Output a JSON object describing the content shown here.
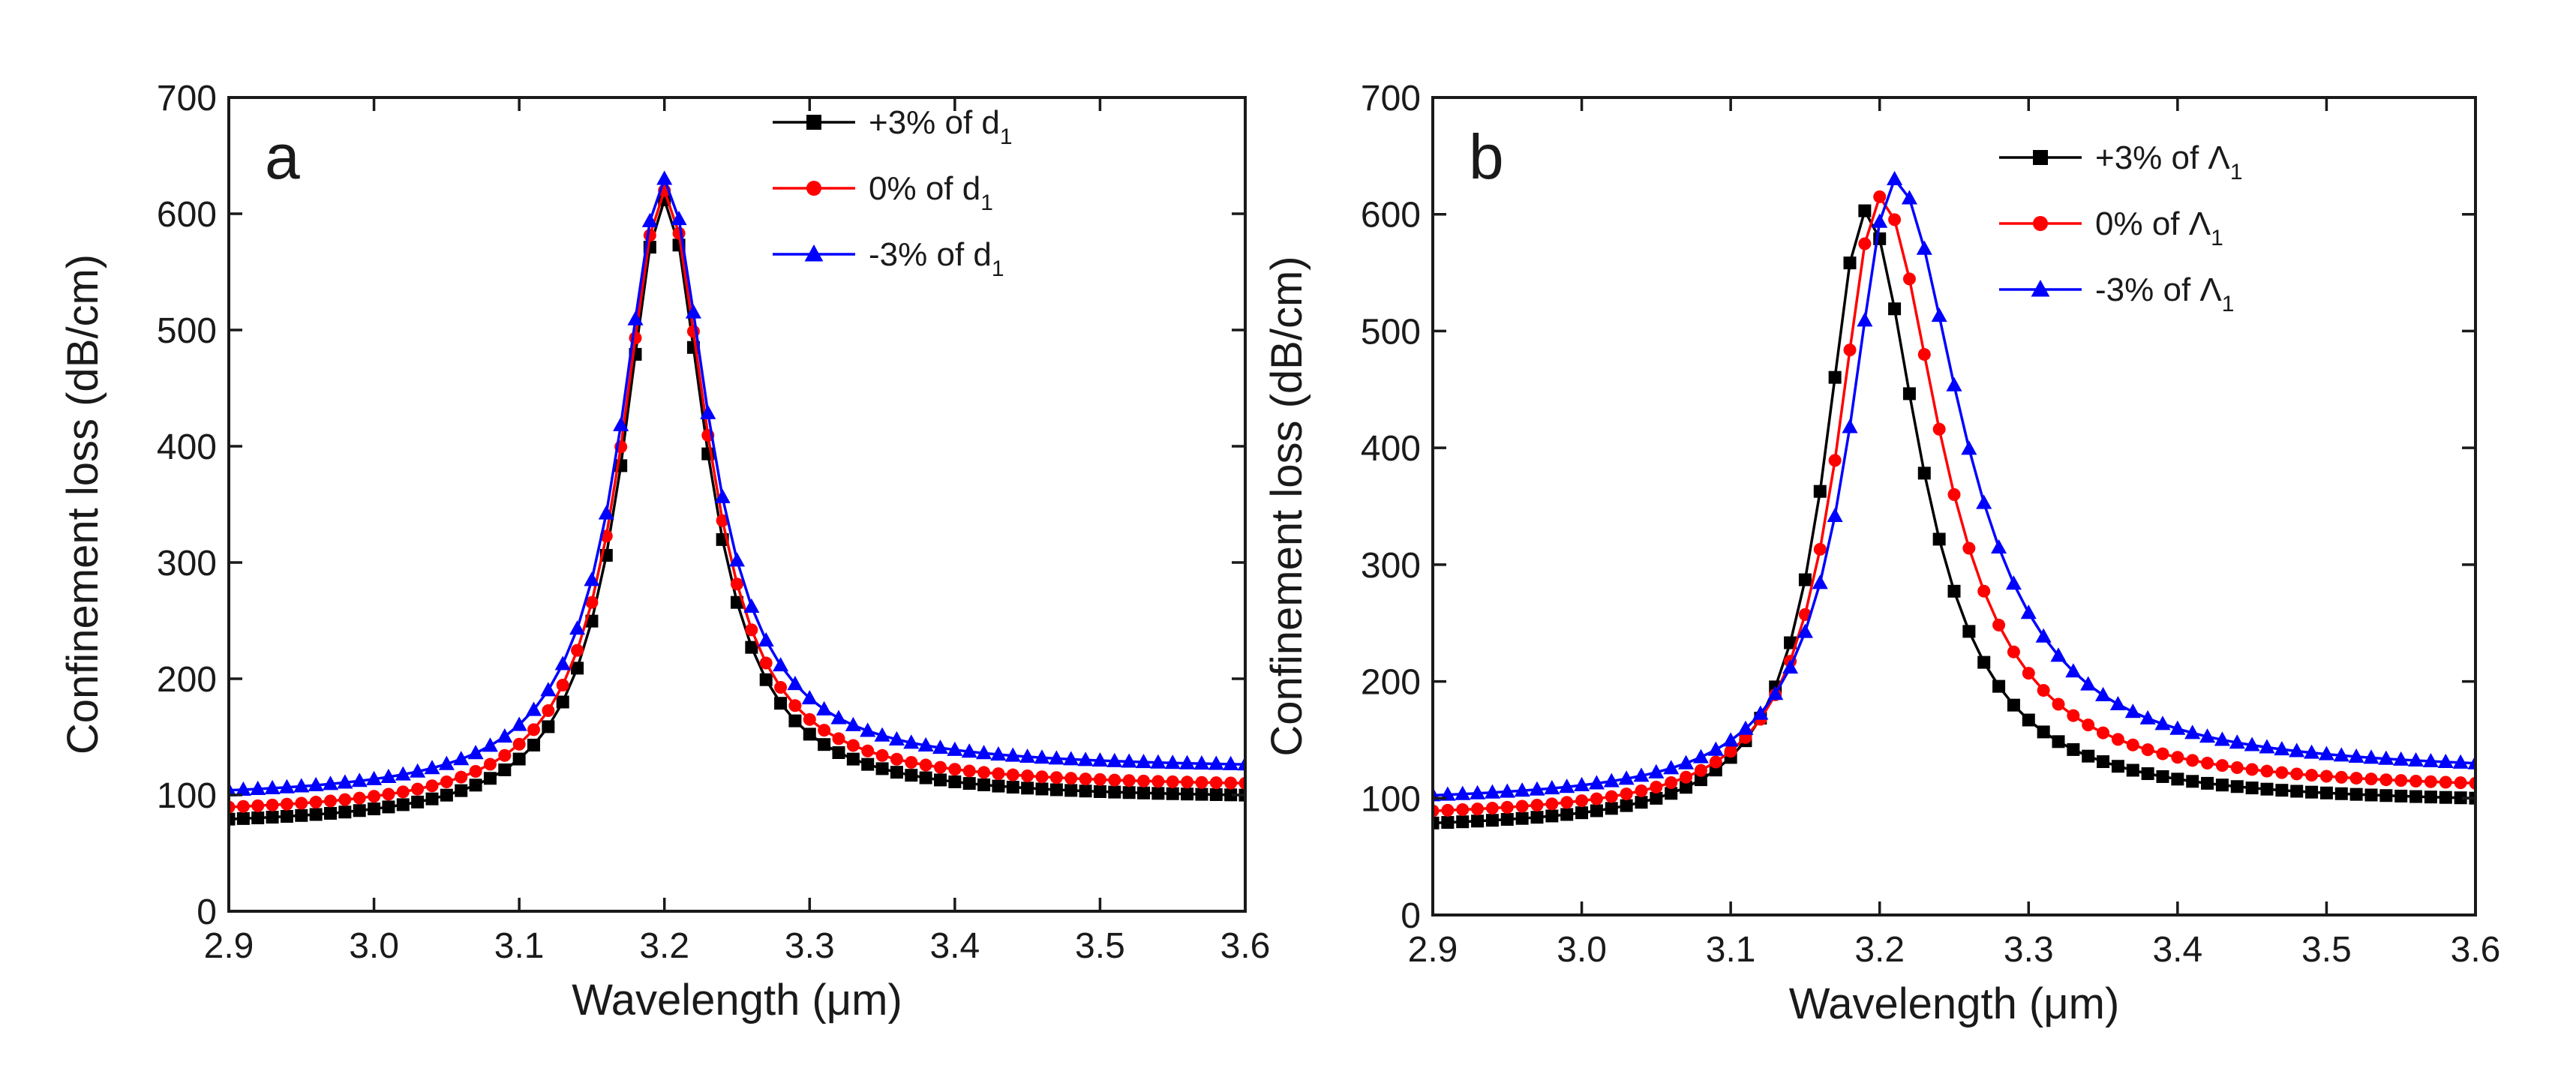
{
  "chart_data": [
    {
      "type": "line",
      "panel_label": "a",
      "xlabel": "Wavelength (μm)",
      "ylabel": "Confinement loss (dB/cm)",
      "xlim": [
        2.9,
        3.6
      ],
      "ylim": [
        0,
        700
      ],
      "xticks": [
        2.9,
        3.0,
        3.1,
        3.2,
        3.3,
        3.4,
        3.5,
        3.6
      ],
      "yticks": [
        0,
        100,
        200,
        300,
        400,
        500,
        600,
        700
      ],
      "xtick_labels": [
        "2.9",
        "3.0",
        "3.1",
        "3.2",
        "3.3",
        "3.4",
        "3.5",
        "3.6"
      ],
      "ytick_labels": [
        "0",
        "100",
        "200",
        "300",
        "400",
        "500",
        "600",
        "700"
      ],
      "grid": false,
      "legend_position": "top-right",
      "x_start": 2.9,
      "x_end": 3.6,
      "x_step": 0.01,
      "series": [
        {
          "name": "+3% of d1",
          "label_main": "+3% of d",
          "label_sub": "1",
          "color": "#000000",
          "marker": "square",
          "peak_x": 3.2,
          "peak_y": 612,
          "gamma_left": 0.035,
          "gamma_right": 0.035,
          "start_y": 72,
          "end_y": 96
        },
        {
          "name": "0% of d1",
          "label_main": "0% of d",
          "label_sub": "1",
          "color": "#ff0000",
          "marker": "circle",
          "peak_x": 3.2,
          "peak_y": 620,
          "gamma_left": 0.036,
          "gamma_right": 0.036,
          "start_y": 82,
          "end_y": 106
        },
        {
          "name": "-3% of d1",
          "label_main": "-3% of d",
          "label_sub": "1",
          "color": "#0000ff",
          "marker": "triangle",
          "peak_x": 3.2,
          "peak_y": 630,
          "gamma_left": 0.037,
          "gamma_right": 0.037,
          "start_y": 96,
          "end_y": 122
        }
      ]
    },
    {
      "type": "line",
      "panel_label": "b",
      "xlabel": "Wavelength (μm)",
      "ylabel": "Confinement loss (dB/cm)",
      "xlim": [
        2.9,
        3.6
      ],
      "ylim": [
        0,
        700
      ],
      "xticks": [
        2.9,
        3.0,
        3.1,
        3.2,
        3.3,
        3.4,
        3.5,
        3.6
      ],
      "yticks": [
        0,
        100,
        200,
        300,
        400,
        500,
        600,
        700
      ],
      "xtick_labels": [
        "2.9",
        "3.0",
        "3.1",
        "3.2",
        "3.3",
        "3.4",
        "3.5",
        "3.6"
      ],
      "ytick_labels": [
        "0",
        "100",
        "200",
        "300",
        "400",
        "500",
        "600",
        "700"
      ],
      "grid": false,
      "legend_position": "top-right",
      "x_start": 2.9,
      "x_end": 3.6,
      "x_step": 0.01,
      "series": [
        {
          "name": "+3% of Λ1",
          "label_main": "+3% of Λ",
          "label_sub": "1",
          "color": "#000000",
          "marker": "square",
          "peak_x": 3.19,
          "peak_y": 603,
          "gamma_left": 0.033,
          "gamma_right": 0.045,
          "start_y": 72,
          "end_y": 94
        },
        {
          "name": "0% of Λ1",
          "label_main": "0% of Λ",
          "label_sub": "1",
          "color": "#ff0000",
          "marker": "circle",
          "peak_x": 3.2,
          "peak_y": 615,
          "gamma_left": 0.035,
          "gamma_right": 0.05,
          "start_y": 82,
          "end_y": 105
        },
        {
          "name": "-3% of Λ1",
          "label_main": "-3% of Λ",
          "label_sub": "1",
          "color": "#0000ff",
          "marker": "triangle",
          "peak_x": 3.21,
          "peak_y": 630,
          "gamma_left": 0.037,
          "gamma_right": 0.055,
          "start_y": 95,
          "end_y": 120
        }
      ]
    }
  ]
}
